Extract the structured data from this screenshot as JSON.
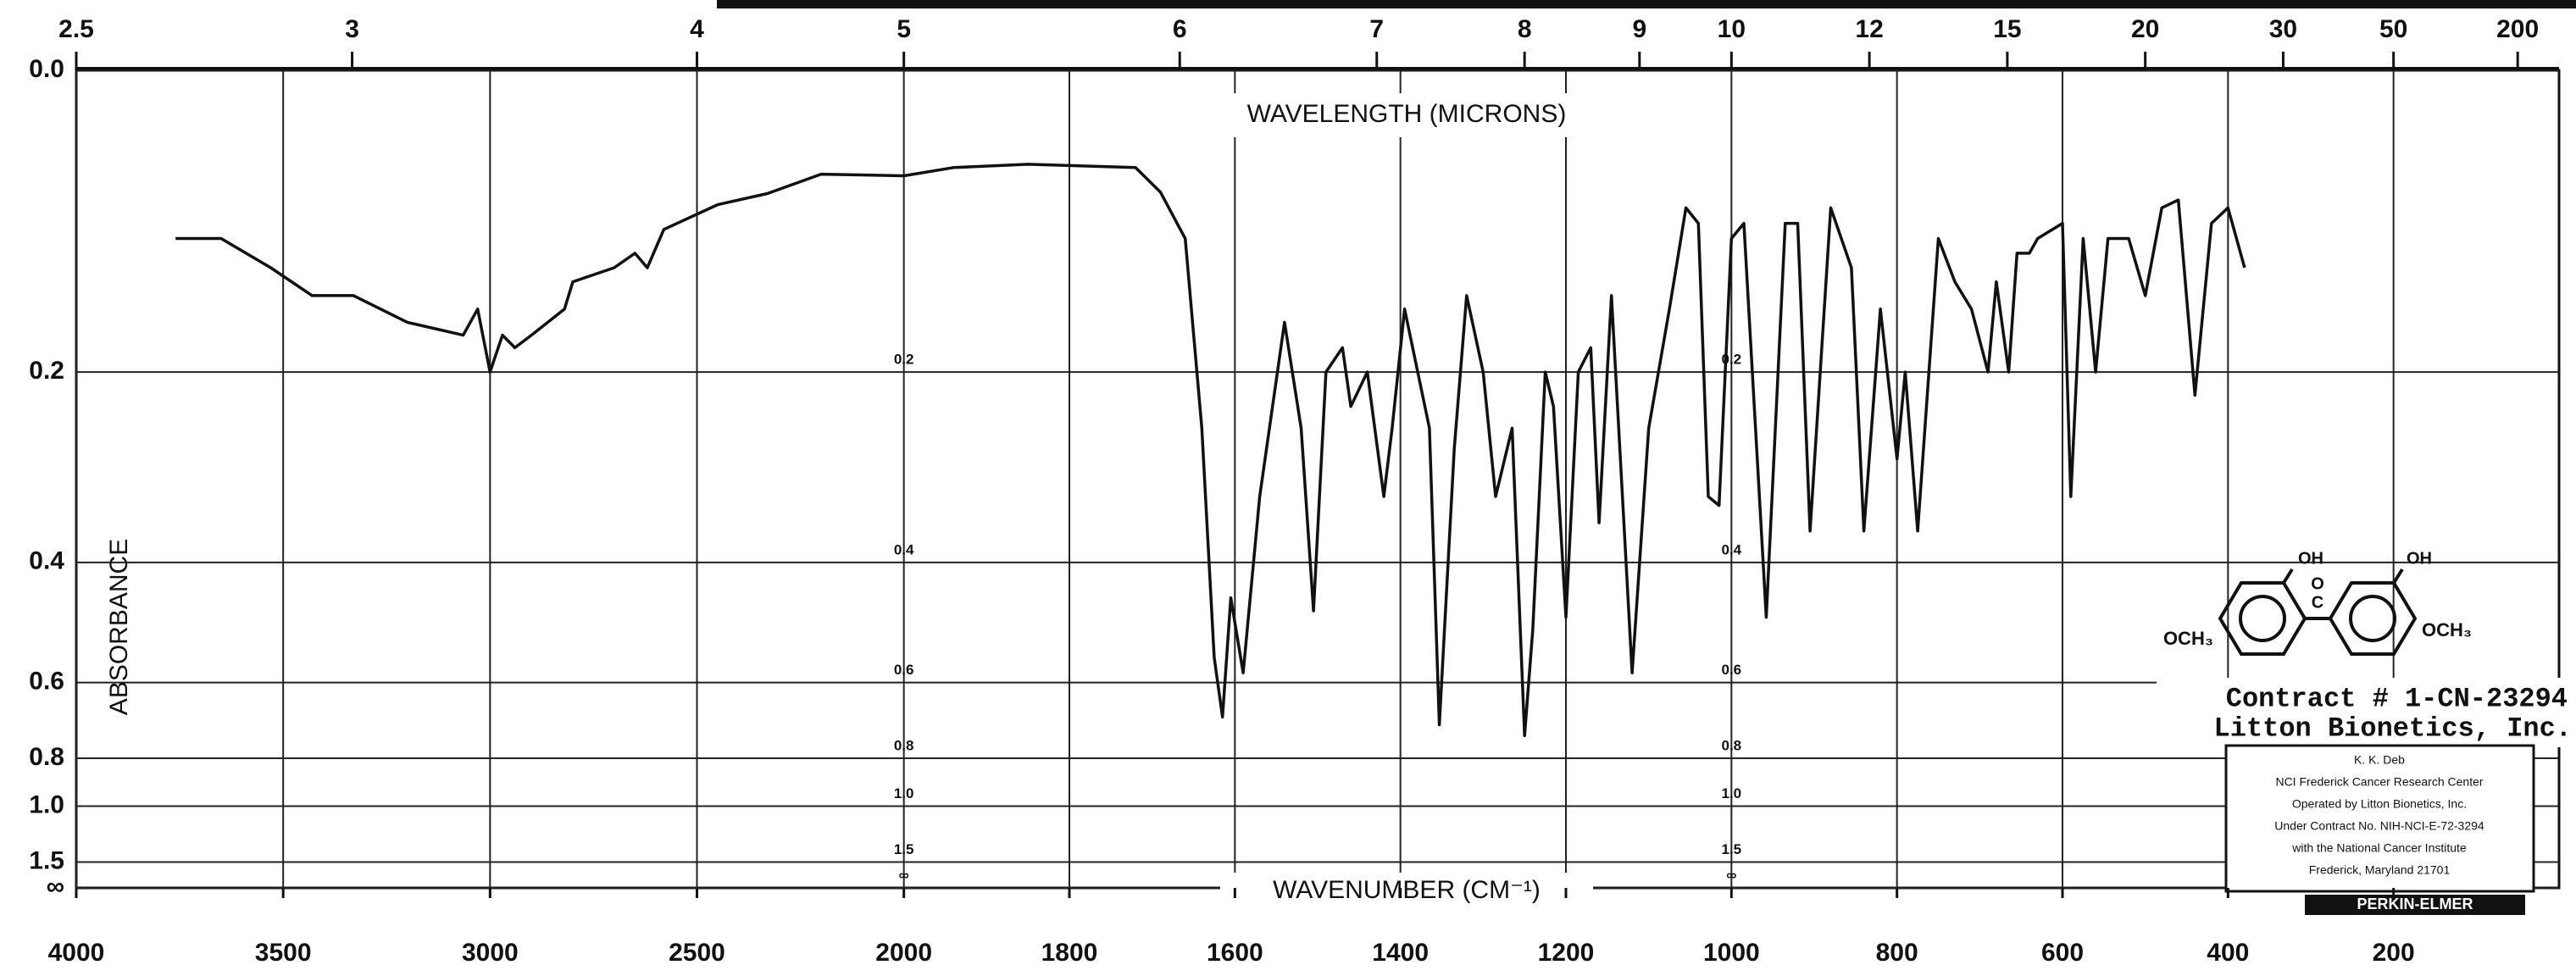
{
  "chart_data": {
    "type": "line",
    "x_title": "WAVENUMBER (CM⁻¹)",
    "x2_title": "WAVELENGTH (MICRONS)",
    "y_title": "ABSORBANCE",
    "y_scale": "transmittance",
    "x_scale_break": 2000,
    "x_scale_ratio": 2,
    "grid": true,
    "color": "#111111",
    "xlim": [
      4000,
      0
    ],
    "xticks": [
      4000,
      3500,
      3000,
      2500,
      2000,
      1800,
      1600,
      1400,
      1200,
      1000,
      800,
      600,
      400,
      200
    ],
    "x2ticks": [
      2.5,
      3,
      4,
      5,
      6,
      7,
      8,
      9,
      10,
      12,
      15,
      20,
      30,
      50,
      200
    ],
    "ylim": [
      0,
      null
    ],
    "yticks": [
      {
        "value": 0,
        "label": "0.0"
      },
      0.2,
      0.4,
      0.6,
      0.8,
      {
        "value": 1,
        "label": "1.0"
      },
      1.5,
      {
        "value": null,
        "label": "∞"
      }
    ],
    "x": [
      3760,
      3650,
      3530,
      3430,
      3330,
      3200,
      3065,
      3030,
      3000,
      2970,
      2940,
      2900,
      2820,
      2800,
      2700,
      2650,
      2620,
      2580,
      2450,
      2330,
      2200,
      2000,
      1940,
      1850,
      1720,
      1690,
      1660,
      1640,
      1625,
      1615,
      1605,
      1590,
      1570,
      1540,
      1520,
      1505,
      1490,
      1470,
      1460,
      1440,
      1420,
      1410,
      1395,
      1365,
      1353,
      1335,
      1320,
      1300,
      1285,
      1265,
      1250,
      1240,
      1225,
      1215,
      1200,
      1185,
      1170,
      1160,
      1145,
      1120,
      1100,
      1075,
      1055,
      1040,
      1028,
      1015,
      1000,
      985,
      958,
      935,
      920,
      905,
      880,
      855,
      840,
      820,
      800,
      790,
      775,
      750,
      730,
      710,
      690,
      680,
      665,
      655,
      640,
      630,
      600,
      590,
      575,
      560,
      545,
      520,
      500,
      480,
      460,
      440,
      420,
      400,
      380
    ],
    "values": [
      0.1,
      0.1,
      0.12,
      0.14,
      0.14,
      0.16,
      0.17,
      0.15,
      0.2,
      0.17,
      0.18,
      0.17,
      0.15,
      0.13,
      0.12,
      0.11,
      0.12,
      0.094,
      0.078,
      0.071,
      0.059,
      0.06,
      0.055,
      0.053,
      0.055,
      0.07,
      0.1,
      0.25,
      0.55,
      0.68,
      0.45,
      0.58,
      0.32,
      0.16,
      0.25,
      0.47,
      0.2,
      0.18,
      0.23,
      0.2,
      0.32,
      0.25,
      0.15,
      0.25,
      0.7,
      0.27,
      0.14,
      0.2,
      0.32,
      0.25,
      0.73,
      0.5,
      0.2,
      0.23,
      0.48,
      0.2,
      0.18,
      0.35,
      0.14,
      0.58,
      0.25,
      0.15,
      0.08,
      0.09,
      0.32,
      0.33,
      0.1,
      0.09,
      0.48,
      0.09,
      0.09,
      0.36,
      0.08,
      0.12,
      0.36,
      0.15,
      0.28,
      0.2,
      0.36,
      0.1,
      0.13,
      0.15,
      0.2,
      0.13,
      0.2,
      0.11,
      0.11,
      0.1,
      0.09,
      0.32,
      0.1,
      0.2,
      0.1,
      0.1,
      0.14,
      0.08,
      0.075,
      0.22,
      0.09,
      0.08,
      0.12
    ],
    "annotations": [
      "Contract # 1-CN-23294",
      "Litton Bionetics, Inc."
    ],
    "stamp": [
      "K. K. Deb",
      "NCI Frederick Cancer Research Center",
      "Operated by Litton Bionetics, Inc.",
      "Under Contract No. NIH-NCI-E-72-3294",
      "with the National Cancer Institute",
      "Frederick, Maryland 21701"
    ],
    "brand": "PERKIN-ELMER",
    "structure": [
      "OCH₃",
      "OH",
      "O",
      "C",
      "OH",
      "OCH₃"
    ]
  }
}
